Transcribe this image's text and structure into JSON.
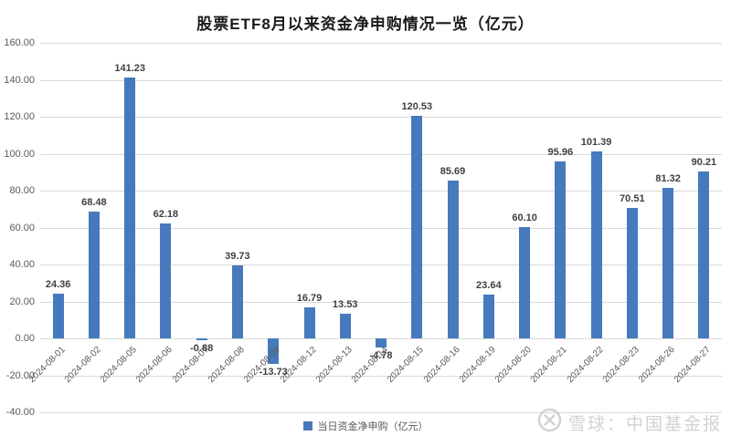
{
  "chart_data": {
    "type": "bar",
    "title": "股票ETF8月以来资金净申购情况一览（亿元）",
    "categories": [
      "2024-08-01",
      "2024-08-02",
      "2024-08-05",
      "2024-08-06",
      "2024-08-07",
      "2024-08-08",
      "2024-08-09",
      "2024-08-12",
      "2024-08-13",
      "2024-08-14",
      "2024-08-15",
      "2024-08-16",
      "2024-08-19",
      "2024-08-20",
      "2024-08-21",
      "2024-08-22",
      "2024-08-23",
      "2024-08-26",
      "2024-08-27"
    ],
    "series": [
      {
        "name": "当日资金净申购（亿元）",
        "values": [
          24.36,
          68.48,
          141.23,
          62.18,
          -0.88,
          39.73,
          -13.73,
          16.79,
          13.53,
          -4.78,
          120.53,
          85.69,
          23.64,
          60.1,
          95.96,
          101.39,
          70.51,
          81.32,
          90.21
        ]
      }
    ],
    "xlabel": "",
    "ylabel": "",
    "ylim": [
      -40,
      160
    ],
    "ytick_step": 20,
    "ytick_labels": [
      "160.00",
      "140.00",
      "120.00",
      "100.00",
      "80.00",
      "60.00",
      "40.00",
      "20.00",
      "0.00",
      "-20.00",
      "-40.00"
    ],
    "grid": true,
    "legend_position": "bottom",
    "value_labels_shown": true
  },
  "legend": {
    "label": "当日资金净申购（亿元）"
  },
  "watermark": {
    "logo_icon": "xueqiu-logo",
    "text": "雪球：中国基金报"
  },
  "colors": {
    "bar": "#4779BD",
    "grid": "#d9d9d9",
    "axis_text": "#595959",
    "value_label": "#3f3f3f",
    "watermark": "#d2d2d2",
    "background": "#ffffff"
  }
}
